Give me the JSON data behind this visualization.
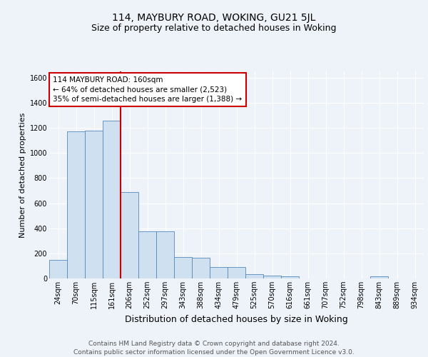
{
  "title": "114, MAYBURY ROAD, WOKING, GU21 5JL",
  "subtitle": "Size of property relative to detached houses in Woking",
  "xlabel": "Distribution of detached houses by size in Woking",
  "ylabel": "Number of detached properties",
  "footer_line1": "Contains HM Land Registry data © Crown copyright and database right 2024.",
  "footer_line2": "Contains public sector information licensed under the Open Government Licence v3.0.",
  "annotation_line1": "114 MAYBURY ROAD: 160sqm",
  "annotation_line2": "← 64% of detached houses are smaller (2,523)",
  "annotation_line3": "35% of semi-detached houses are larger (1,388) →",
  "bar_labels": [
    "24sqm",
    "70sqm",
    "115sqm",
    "161sqm",
    "206sqm",
    "252sqm",
    "297sqm",
    "343sqm",
    "388sqm",
    "434sqm",
    "479sqm",
    "525sqm",
    "570sqm",
    "616sqm",
    "661sqm",
    "707sqm",
    "752sqm",
    "798sqm",
    "843sqm",
    "889sqm",
    "934sqm"
  ],
  "bar_values": [
    150,
    1170,
    1175,
    1260,
    690,
    375,
    375,
    170,
    165,
    90,
    90,
    35,
    20,
    15,
    0,
    0,
    0,
    0,
    15,
    0,
    0
  ],
  "bar_color": "#cfe0f0",
  "bar_edgecolor": "#5588bb",
  "red_line_x": 3.5,
  "red_line_color": "#cc0000",
  "ylim": [
    0,
    1650
  ],
  "yticks": [
    0,
    200,
    400,
    600,
    800,
    1000,
    1200,
    1400,
    1600
  ],
  "bg_color": "#eef2f9",
  "plot_bg_color": "#eef2f9",
  "grid_color": "#ffffff",
  "title_fontsize": 10,
  "subtitle_fontsize": 9,
  "xlabel_fontsize": 9,
  "ylabel_fontsize": 8,
  "tick_fontsize": 7,
  "annotation_fontsize": 7.5,
  "footer_fontsize": 6.5
}
